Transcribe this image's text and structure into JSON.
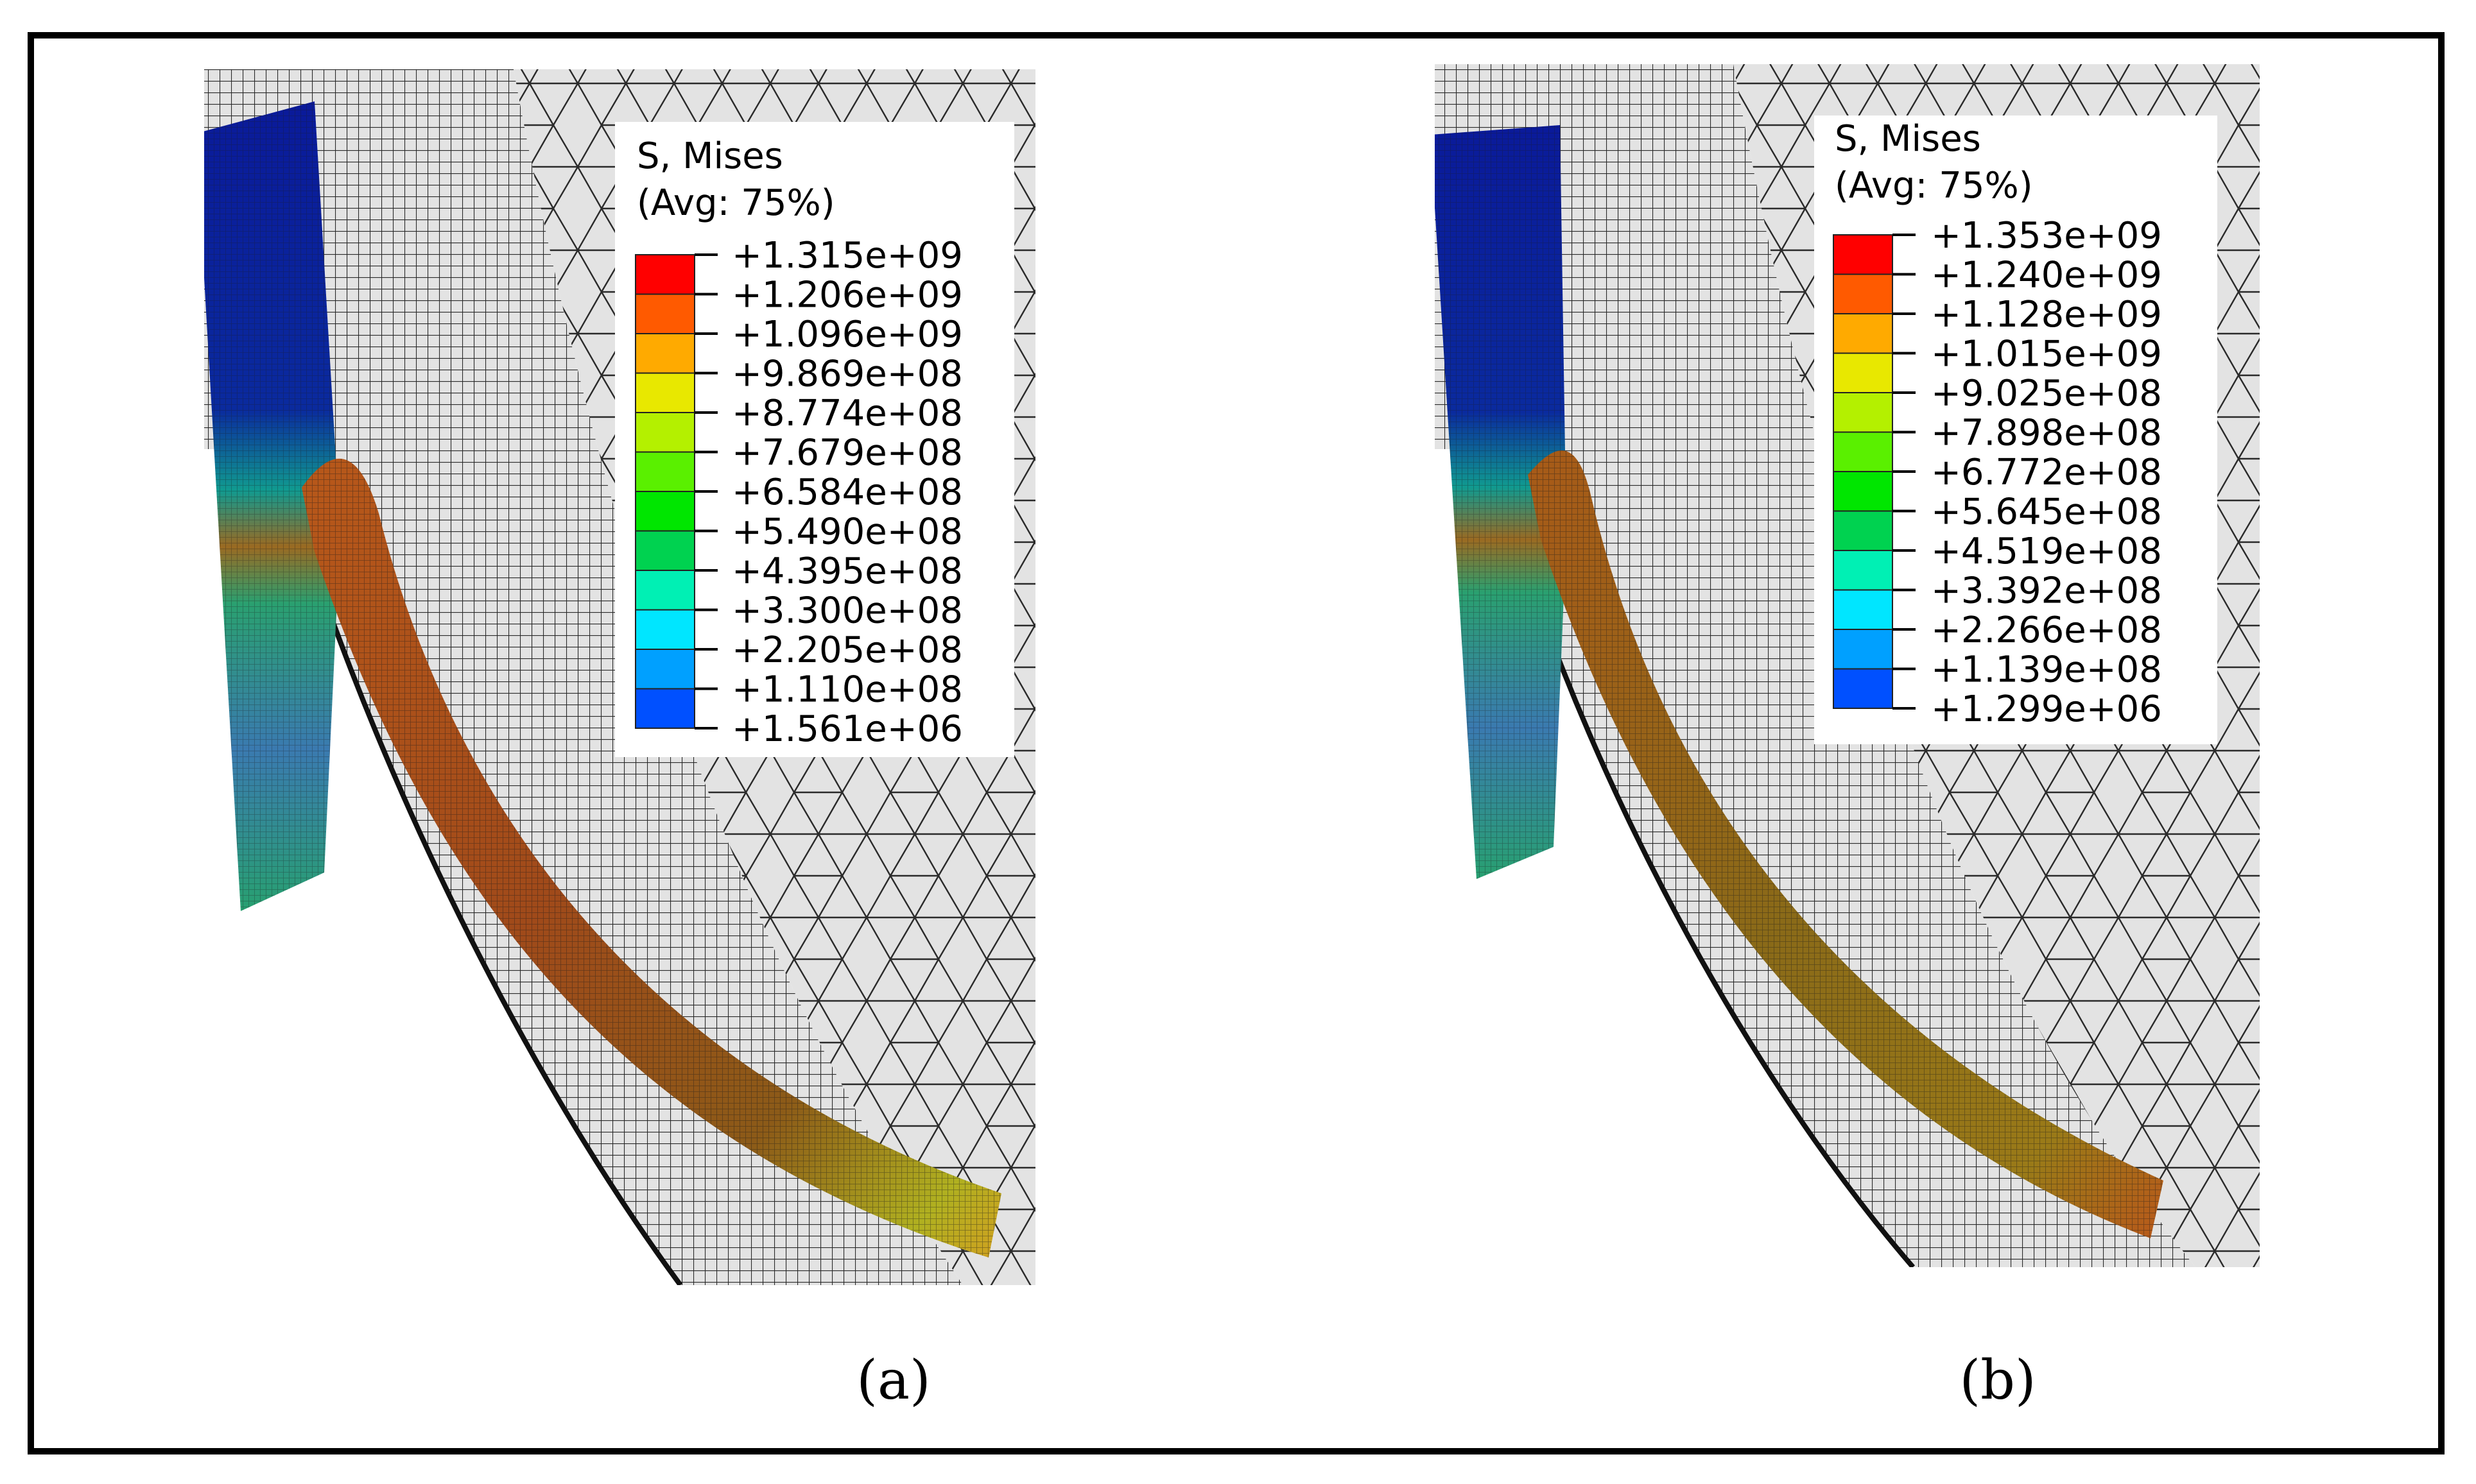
{
  "figure": {
    "panels": [
      {
        "id": "a",
        "caption": "(a)",
        "legend": {
          "title_line1": "S, Mises",
          "title_line2": "(Avg: 75%)",
          "values": [
            "+1.315e+09",
            "+1.206e+09",
            "+1.096e+09",
            "+9.869e+08",
            "+8.774e+08",
            "+7.679e+08",
            "+6.584e+08",
            "+5.490e+08",
            "+4.395e+08",
            "+3.300e+08",
            "+2.205e+08",
            "+1.110e+08",
            "+1.561e+06"
          ]
        }
      },
      {
        "id": "b",
        "caption": "(b)",
        "legend": {
          "title_line1": "S, Mises",
          "title_line2": "(Avg: 75%)",
          "values": [
            "+1.353e+09",
            "+1.240e+09",
            "+1.128e+09",
            "+1.015e+09",
            "+9.025e+08",
            "+7.898e+08",
            "+6.772e+08",
            "+5.645e+08",
            "+4.519e+08",
            "+3.392e+08",
            "+2.266e+08",
            "+1.139e+08",
            "+1.299e+06"
          ]
        }
      }
    ],
    "colorbar_colors": [
      "#ff0000",
      "#ff5a00",
      "#ffaa00",
      "#e8e800",
      "#b4f000",
      "#5af000",
      "#00e600",
      "#00d250",
      "#00f0b4",
      "#00e6ff",
      "#00a0ff",
      "#0050ff",
      "#0000ff"
    ],
    "colors": {
      "background_gray": "#e3e3e3",
      "mesh_line": "#2a2a2a",
      "frame": "#000000",
      "block_blue": "#0a1f9a",
      "strip_orange": "#a4581c"
    }
  }
}
